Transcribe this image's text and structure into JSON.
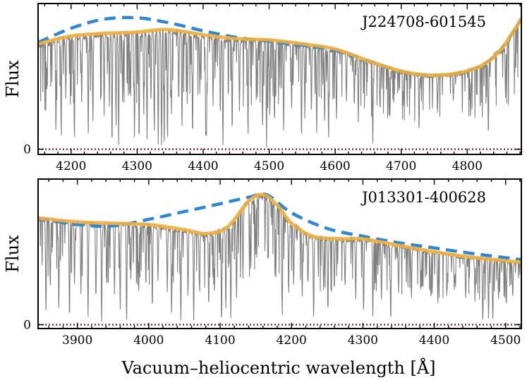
{
  "colors": {
    "spectrum": "#7f7f7f",
    "model_dashed": "#2f86d3",
    "model_solid": "#f0ad3c",
    "zero_line": "#7d1a24",
    "frame": "#000000"
  },
  "shared_xlabel": "Vacuum–heliocentric wavelength [Å]",
  "chart_data": [
    {
      "type": "line",
      "label": "J224708-601545",
      "ylabel": "Flux",
      "xlim": [
        4150,
        4882
      ],
      "ylim": [
        -0.04,
        1.12
      ],
      "xticks": [
        4200,
        4300,
        4400,
        4500,
        4600,
        4700,
        4800
      ],
      "yticks": [
        {
          "value": 0,
          "label": "0"
        }
      ],
      "continuum_anchors": {
        "x": [
          4150,
          4200,
          4250,
          4300,
          4345,
          4400,
          4450,
          4500,
          4550,
          4600,
          4650,
          4700,
          4740,
          4780,
          4820,
          4850,
          4882
        ],
        "y": [
          0.81,
          0.87,
          0.89,
          0.9,
          0.92,
          0.88,
          0.85,
          0.84,
          0.81,
          0.77,
          0.68,
          0.6,
          0.57,
          0.58,
          0.64,
          0.76,
          1.0
        ]
      },
      "series": [
        {
          "name": "Observed spectrum",
          "style": "gray",
          "line_wavelengths": [
            4163,
            4177,
            4185,
            4192,
            4205,
            4216,
            4226,
            4233,
            4250,
            4258,
            4262,
            4268,
            4272,
            4278,
            4290,
            4296,
            4303,
            4310,
            4315,
            4321,
            4326,
            4332,
            4337,
            4341,
            4346,
            4352,
            4363,
            4368,
            4376,
            4384,
            4395,
            4404,
            4405,
            4415,
            4426,
            4430,
            4444,
            4455,
            4468,
            4482,
            4490,
            4496,
            4501,
            4508,
            4522,
            4534,
            4549,
            4554,
            4564,
            4572,
            4584,
            4590,
            4602,
            4617,
            4629,
            4635,
            4657,
            4668,
            4683,
            4703,
            4727,
            4755,
            4779,
            4805,
            4832,
            4858,
            4872
          ],
          "line_depths": [
            0.45,
            0.85,
            0.9,
            0.55,
            0.92,
            0.6,
            0.88,
            0.75,
            0.7,
            0.5,
            0.98,
            0.8,
            0.96,
            0.6,
            0.55,
            0.9,
            0.95,
            0.7,
            0.92,
            0.6,
            0.88,
            0.96,
            0.98,
            0.99,
            0.94,
            0.7,
            0.6,
            0.82,
            0.55,
            0.9,
            0.5,
            0.96,
            0.95,
            0.6,
            0.7,
            0.98,
            0.85,
            0.65,
            0.9,
            0.55,
            0.8,
            0.98,
            0.7,
            0.75,
            0.85,
            0.6,
            0.9,
            0.7,
            0.65,
            0.85,
            0.75,
            0.92,
            0.7,
            0.5,
            0.55,
            0.7,
            0.93,
            0.55,
            0.6,
            0.45,
            0.75,
            0.5,
            0.35,
            0.6,
            0.85,
            0.5,
            0.4
          ]
        },
        {
          "name": "Continuum model (dashed)",
          "style": "dashed",
          "x": [
            4150,
            4200,
            4250,
            4300,
            4350,
            4400,
            4450,
            4500,
            4550,
            4600,
            4650,
            4700,
            4740,
            4780,
            4820,
            4850,
            4882
          ],
          "y": [
            0.82,
            0.93,
            1.0,
            1.01,
            0.97,
            0.91,
            0.86,
            0.83,
            0.8,
            0.76,
            0.68,
            0.6,
            0.57,
            0.58,
            0.64,
            0.76,
            1.0
          ]
        },
        {
          "name": "Continuum model (solid)",
          "style": "solid",
          "x": [
            4150,
            4200,
            4250,
            4300,
            4345,
            4400,
            4450,
            4500,
            4550,
            4600,
            4650,
            4700,
            4740,
            4780,
            4820,
            4850,
            4882
          ],
          "y": [
            0.81,
            0.87,
            0.89,
            0.9,
            0.92,
            0.88,
            0.85,
            0.84,
            0.81,
            0.77,
            0.68,
            0.6,
            0.57,
            0.58,
            0.64,
            0.76,
            1.0
          ]
        }
      ]
    },
    {
      "type": "line",
      "label": "J013301-400628",
      "ylabel": "Flux",
      "xlim": [
        3845,
        4522
      ],
      "ylim": [
        -0.03,
        1.12
      ],
      "xticks": [
        3900,
        4000,
        4100,
        4200,
        4300,
        4400,
        4500
      ],
      "yticks": [
        {
          "value": 0,
          "label": "0"
        }
      ],
      "continuum_anchors": {
        "x": [
          3845,
          3900,
          3950,
          4000,
          4050,
          4080,
          4110,
          4140,
          4160,
          4180,
          4200,
          4230,
          4270,
          4300,
          4350,
          4400,
          4450,
          4522
        ],
        "y": [
          0.82,
          0.79,
          0.78,
          0.77,
          0.73,
          0.7,
          0.75,
          0.95,
          1.0,
          0.92,
          0.78,
          0.68,
          0.66,
          0.66,
          0.61,
          0.56,
          0.52,
          0.48
        ]
      },
      "series": [
        {
          "name": "Observed spectrum",
          "style": "gray",
          "line_wavelengths": [
            3856,
            3862,
            3874,
            3889,
            3896,
            3905,
            3915,
            3926,
            3934,
            3941,
            3952,
            3960,
            3969,
            3975,
            3986,
            3996,
            4005,
            4013,
            4026,
            4032,
            4045,
            4055,
            4063,
            4071,
            4084,
            4092,
            4102,
            4108,
            4115,
            4123,
            4132,
            4143,
            4150,
            4167,
            4178,
            4187,
            4196,
            4203,
            4215,
            4223,
            4231,
            4245,
            4251,
            4260,
            4275,
            4290,
            4301,
            4314,
            4326,
            4339,
            4350,
            4368,
            4381,
            4395,
            4405,
            4418,
            4428,
            4444,
            4457,
            4468,
            4476,
            4482,
            4490,
            4501,
            4510
          ],
          "line_depths": [
            0.9,
            0.65,
            0.85,
            0.95,
            0.6,
            0.7,
            0.92,
            0.75,
            0.98,
            0.6,
            0.7,
            0.85,
            0.97,
            0.55,
            0.7,
            0.6,
            0.85,
            0.55,
            0.65,
            0.9,
            0.96,
            0.7,
            0.95,
            0.6,
            0.8,
            0.65,
            0.98,
            0.85,
            0.95,
            0.75,
            0.6,
            0.55,
            0.45,
            0.5,
            0.6,
            0.93,
            0.7,
            0.6,
            0.7,
            0.55,
            0.92,
            0.6,
            0.85,
            0.6,
            0.55,
            0.7,
            0.85,
            0.9,
            0.7,
            0.96,
            0.6,
            0.65,
            0.55,
            0.6,
            0.7,
            0.55,
            0.5,
            0.6,
            0.65,
            0.96,
            0.9,
            0.95,
            0.6,
            0.7,
            0.55
          ]
        },
        {
          "name": "Continuum model (dashed)",
          "style": "dashed",
          "x": [
            3845,
            3900,
            3950,
            4000,
            4050,
            4100,
            4140,
            4165,
            4200,
            4250,
            4300,
            4350,
            4400,
            4450,
            4522
          ],
          "y": [
            0.82,
            0.77,
            0.76,
            0.81,
            0.87,
            0.93,
            0.98,
            1.0,
            0.86,
            0.74,
            0.68,
            0.63,
            0.59,
            0.55,
            0.5
          ]
        },
        {
          "name": "Continuum model (solid)",
          "style": "solid",
          "x": [
            3845,
            3900,
            3950,
            4000,
            4050,
            4080,
            4110,
            4140,
            4160,
            4180,
            4200,
            4230,
            4270,
            4300,
            4350,
            4400,
            4450,
            4522
          ],
          "y": [
            0.82,
            0.79,
            0.78,
            0.77,
            0.73,
            0.7,
            0.75,
            0.95,
            1.0,
            0.92,
            0.78,
            0.68,
            0.66,
            0.66,
            0.61,
            0.56,
            0.52,
            0.48
          ]
        }
      ]
    }
  ]
}
